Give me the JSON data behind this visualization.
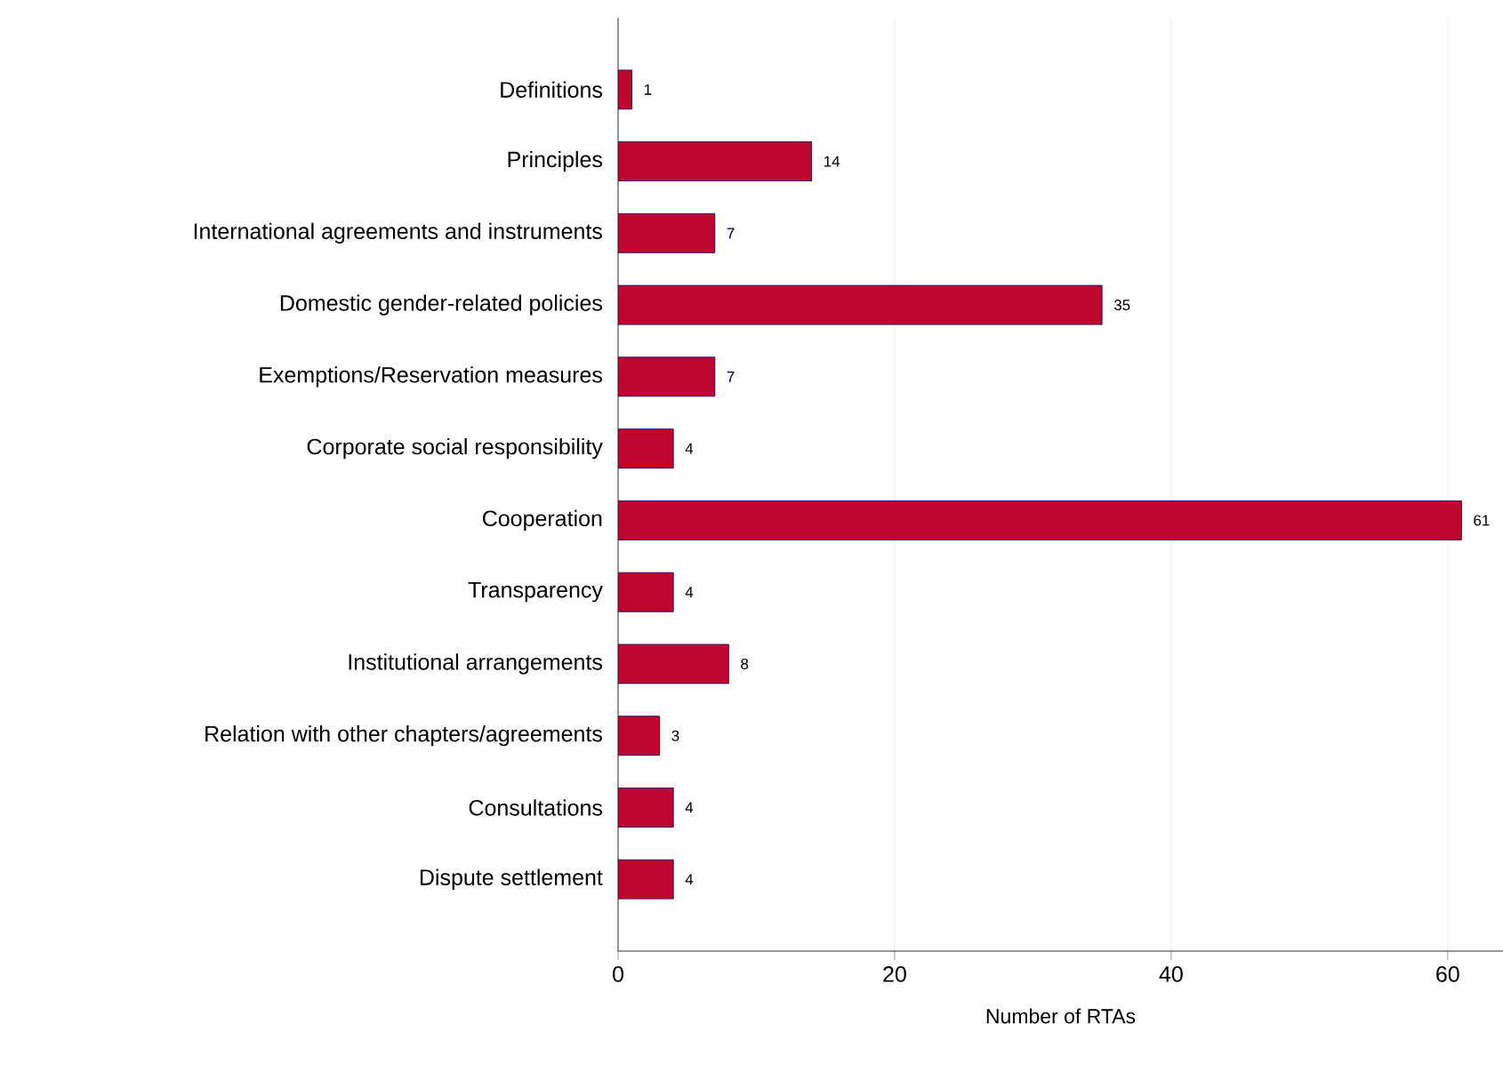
{
  "chart_data": {
    "type": "bar",
    "orientation": "horizontal",
    "xlabel": "Number of RTAs",
    "categories": [
      "Definitions",
      "Principles",
      "International agreements and instruments",
      "Domestic gender-related policies",
      "Exemptions/Reservation measures",
      "Corporate social responsibility",
      "Cooperation",
      "Transparency",
      "Institutional arrangements",
      "Relation with other chapters/agreements",
      "Consultations",
      "Dispute settlement"
    ],
    "values": [
      1,
      14,
      7,
      35,
      7,
      4,
      61,
      4,
      8,
      3,
      4,
      4
    ],
    "color": "#c0062f",
    "xlim": [
      0,
      64
    ],
    "xticks": [
      0,
      20,
      40,
      60
    ],
    "grid": "x",
    "data_labels": true
  }
}
